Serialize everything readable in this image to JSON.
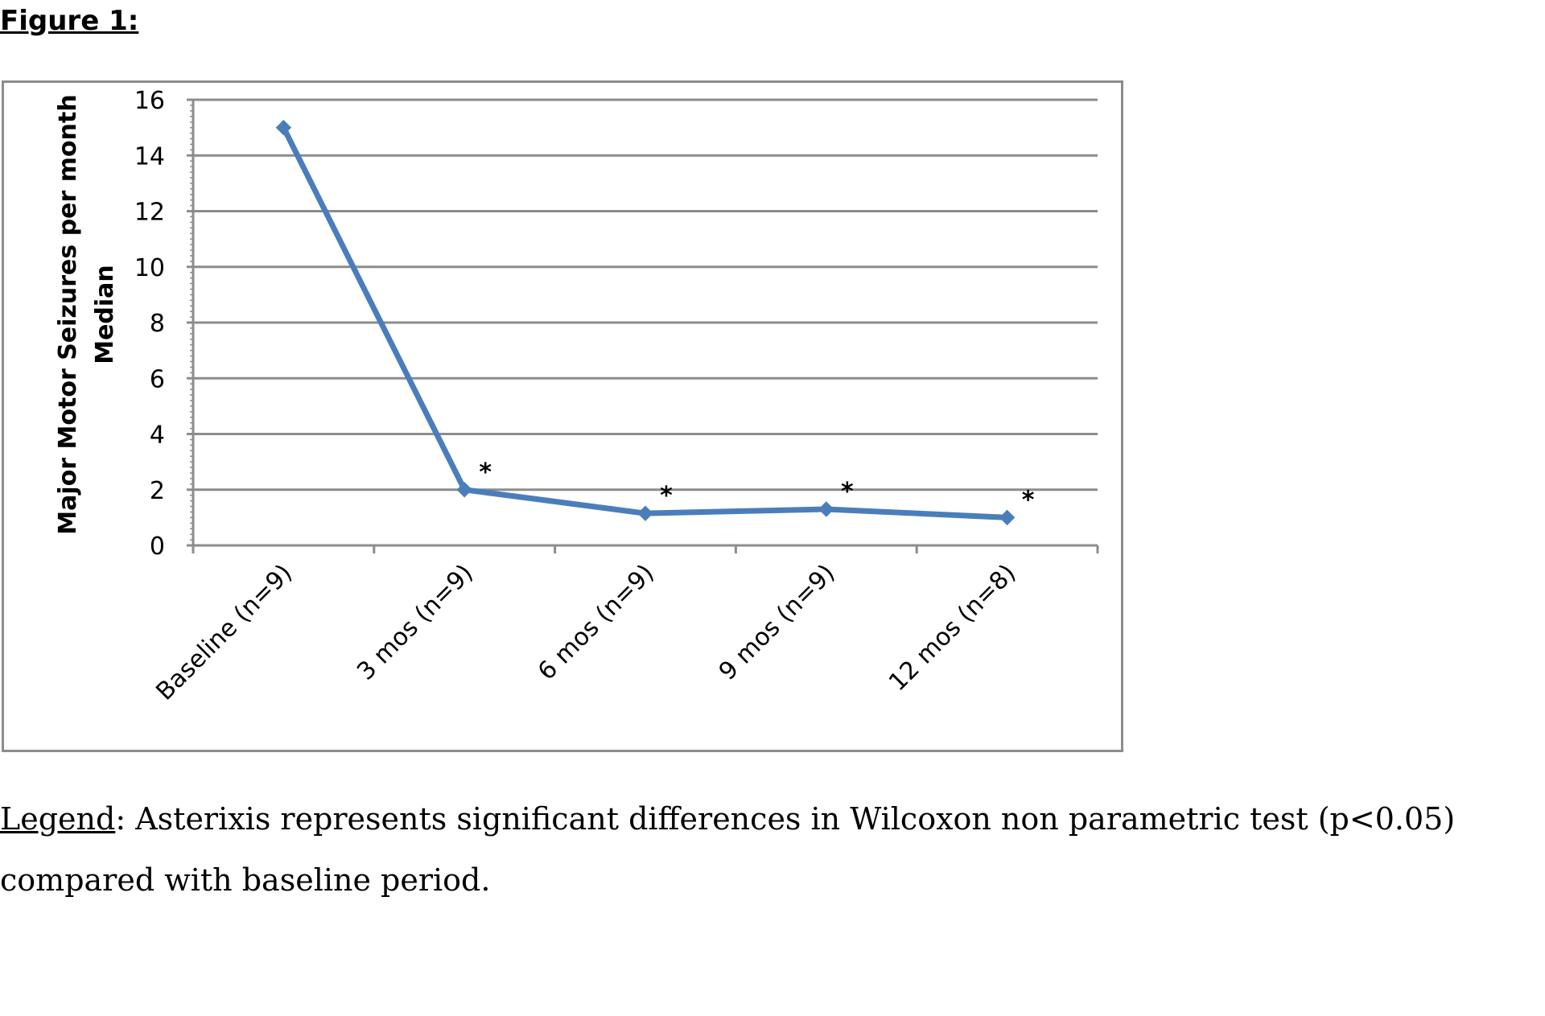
{
  "figure_label": "Figure 1:",
  "chart_data": {
    "type": "line",
    "categories": [
      "Baseline (n=9)",
      "3 mos (n=9)",
      "6 mos (n=9)",
      "9 mos (n=9)",
      "12 mos (n=8)"
    ],
    "series": [
      {
        "values": [
          15,
          2,
          1.15,
          1.3,
          1
        ],
        "significance": [
          "",
          "*",
          "*",
          "*",
          "*"
        ],
        "color": "#4a7ebb"
      }
    ],
    "ylabel_line1": "Major Motor Seizures per month",
    "ylabel_line2": "Median",
    "ylim": [
      0,
      16
    ],
    "yticks": [
      0,
      2,
      4,
      6,
      8,
      10,
      12,
      14,
      16
    ],
    "grid": true,
    "legend": "none",
    "frame_color": "#8c8c8c",
    "grid_color": "#8c8c8c"
  },
  "caption": {
    "legend_word": "Legend",
    "text": ": Asterixis represents significant differences in Wilcoxon non parametric test (p<0.05) compared with baseline period."
  }
}
